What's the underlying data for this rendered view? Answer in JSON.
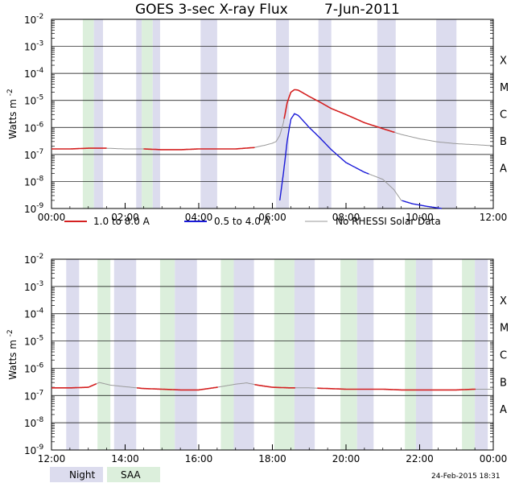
{
  "chart_data": {
    "type": "line",
    "title": "GOES 3-sec X-ray Flux",
    "date": "7-Jun-2011",
    "ylabel": "Watts m",
    "ylabel_sup": "-2",
    "y_scale": "log",
    "ylim": [
      1e-09,
      0.01
    ],
    "y_ticks": [
      {
        "base": "10",
        "exp": "-2",
        "value": 0.01
      },
      {
        "base": "10",
        "exp": "-3",
        "value": 0.001
      },
      {
        "base": "10",
        "exp": "-4",
        "value": 0.0001
      },
      {
        "base": "10",
        "exp": "-5",
        "value": 1e-05
      },
      {
        "base": "10",
        "exp": "-6",
        "value": 1e-06
      },
      {
        "base": "10",
        "exp": "-7",
        "value": 1e-07
      },
      {
        "base": "10",
        "exp": "-8",
        "value": 1e-08
      },
      {
        "base": "10",
        "exp": "-9",
        "value": 1e-09
      }
    ],
    "flare_classes": [
      {
        "label": "X",
        "value": 0.0001
      },
      {
        "label": "M",
        "value": 1e-05
      },
      {
        "label": "C",
        "value": 1e-06
      },
      {
        "label": "B",
        "value": 1e-07
      },
      {
        "label": "A",
        "value": 1e-08
      }
    ],
    "grid": true,
    "legend_position": "between panels",
    "legend": [
      {
        "label": "1.0 to 8.0 A",
        "color": "#d42020"
      },
      {
        "label": "0.5 to 4.0 A",
        "color": "#1a1ad8"
      },
      {
        "label": "No RHESSI Solar Data",
        "color": "#9a9a9a"
      }
    ],
    "shading_legend": [
      {
        "label": "Night",
        "color": "#dcdcee"
      },
      {
        "label": "SAA",
        "color": "#dcefdc"
      }
    ],
    "footer": "24-Feb-2015 18:31",
    "panels": [
      {
        "xlim": [
          0,
          12
        ],
        "x_ticks": [
          "00:00",
          "02:00",
          "04:00",
          "06:00",
          "08:00",
          "10:00",
          "12:00"
        ],
        "night": [
          [
            1.15,
            1.4
          ],
          [
            2.3,
            2.45
          ],
          [
            2.75,
            2.95
          ],
          [
            4.05,
            4.5
          ],
          [
            6.1,
            6.45
          ],
          [
            7.25,
            7.6
          ],
          [
            8.85,
            9.35
          ],
          [
            10.45,
            11.0
          ]
        ],
        "saa": [
          [
            0.85,
            1.15
          ],
          [
            2.45,
            2.75
          ]
        ],
        "long_series": {
          "name": "1.0 to 8.0 A",
          "x": [
            0,
            0.5,
            1.0,
            1.5,
            2.0,
            2.5,
            3.0,
            3.5,
            4.0,
            4.5,
            5.0,
            5.5,
            5.8,
            6.0,
            6.1,
            6.2,
            6.3,
            6.4,
            6.5,
            6.6,
            6.7,
            6.8,
            7.0,
            7.3,
            7.6,
            8.0,
            8.5,
            9.0,
            9.5,
            10.0,
            10.5,
            11.0,
            11.5,
            12.0
          ],
          "y": [
            1.6e-07,
            1.6e-07,
            1.7e-07,
            1.7e-07,
            1.6e-07,
            1.6e-07,
            1.5e-07,
            1.5e-07,
            1.6e-07,
            1.6e-07,
            1.6e-07,
            1.8e-07,
            2.2e-07,
            2.6e-07,
            3e-07,
            5e-07,
            1.5e-06,
            8e-06,
            2e-05,
            2.5e-05,
            2.4e-05,
            2e-05,
            1.4e-05,
            8.5e-06,
            5e-06,
            3e-06,
            1.5e-06,
            9e-07,
            5.5e-07,
            3.8e-07,
            2.9e-07,
            2.5e-07,
            2.3e-07,
            2.1e-07
          ],
          "gray_ranges": [
            [
              1.5,
              2.5
            ],
            [
              5.5,
              6.3
            ],
            [
              9.3,
              12.0
            ]
          ]
        },
        "short_series": {
          "name": "0.5 to 4.0 A",
          "x": [
            6.2,
            6.3,
            6.4,
            6.5,
            6.6,
            6.7,
            6.8,
            7.0,
            7.3,
            7.6,
            8.0,
            8.5,
            9.0,
            9.3,
            9.5,
            9.8,
            10.2,
            10.6
          ],
          "y": [
            2e-09,
            2e-08,
            3e-07,
            2e-06,
            3.2e-06,
            2.8e-06,
            2e-06,
            1e-06,
            4e-07,
            1.5e-07,
            5e-08,
            2.2e-08,
            1.2e-08,
            5e-09,
            2e-09,
            1.5e-09,
            1.2e-09,
            1e-09
          ],
          "gray_ranges": [
            [
              8.6,
              9.5
            ]
          ]
        }
      },
      {
        "xlim": [
          12,
          24
        ],
        "x_ticks": [
          "12:00",
          "14:00",
          "16:00",
          "18:00",
          "20:00",
          "22:00",
          "00:00"
        ],
        "night": [
          [
            12.4,
            12.75
          ],
          [
            13.7,
            14.3
          ],
          [
            15.35,
            15.95
          ],
          [
            16.95,
            17.5
          ],
          [
            18.6,
            19.15
          ],
          [
            20.3,
            20.75
          ],
          [
            21.9,
            22.35
          ],
          [
            23.5,
            23.85
          ]
        ],
        "saa": [
          [
            13.25,
            13.6
          ],
          [
            14.95,
            15.35
          ],
          [
            16.6,
            16.95
          ],
          [
            18.05,
            18.6
          ],
          [
            19.85,
            20.3
          ],
          [
            21.6,
            21.9
          ],
          [
            23.15,
            23.5
          ]
        ],
        "long_series": {
          "name": "1.0 to 8.0 A",
          "x": [
            12.0,
            12.5,
            13.0,
            13.3,
            13.6,
            14.0,
            14.5,
            15.0,
            15.5,
            16.0,
            16.5,
            17.0,
            17.3,
            17.6,
            18.0,
            18.5,
            19.0,
            19.5,
            20.0,
            20.5,
            21.0,
            21.5,
            22.0,
            22.5,
            23.0,
            23.5,
            24.0
          ],
          "y": [
            1.9e-07,
            1.9e-07,
            2e-07,
            3e-07,
            2.4e-07,
            2.1e-07,
            1.8e-07,
            1.7e-07,
            1.6e-07,
            1.6e-07,
            2e-07,
            2.6e-07,
            2.9e-07,
            2.4e-07,
            2e-07,
            1.9e-07,
            1.9e-07,
            1.8e-07,
            1.7e-07,
            1.7e-07,
            1.7e-07,
            1.6e-07,
            1.6e-07,
            1.6e-07,
            1.6e-07,
            1.7e-07,
            1.7e-07
          ],
          "gray_ranges": [
            [
              13.2,
              14.3
            ],
            [
              16.5,
              17.5
            ],
            [
              18.6,
              19.2
            ],
            [
              23.5,
              24.0
            ]
          ]
        },
        "short_series": {
          "name": "0.5 to 4.0 A",
          "x": [],
          "y": [],
          "gray_ranges": []
        }
      }
    ]
  }
}
